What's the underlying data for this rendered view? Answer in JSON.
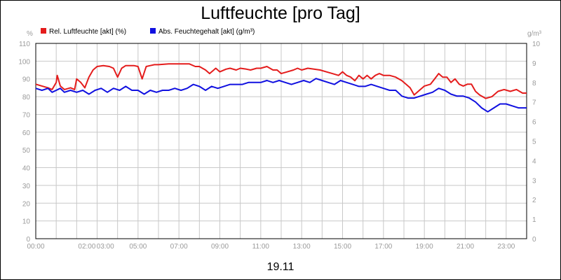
{
  "chart_data": {
    "type": "line",
    "title": "Luftfeuchte [pro Tag]",
    "xlabel": "19.11",
    "y_left_unit": "%",
    "y_right_unit": "g/m³",
    "xlim": [
      0,
      24
    ],
    "ylim_left": [
      0,
      110
    ],
    "ylim_right": [
      0,
      10
    ],
    "y_left_ticks": [
      0,
      10,
      20,
      30,
      40,
      50,
      60,
      70,
      80,
      90,
      100,
      110
    ],
    "y_right_ticks": [
      0,
      1,
      2,
      3,
      4,
      5,
      6,
      7,
      8,
      9,
      10
    ],
    "x_tick_labels": [
      {
        "x": 0,
        "label": "00:00"
      },
      {
        "x": 2.5,
        "label": "02:00"
      },
      {
        "x": 3.4,
        "label": "03:00"
      },
      {
        "x": 5,
        "label": "05:00"
      },
      {
        "x": 7,
        "label": "07:00"
      },
      {
        "x": 9,
        "label": "09:00"
      },
      {
        "x": 11,
        "label": "11:00"
      },
      {
        "x": 13,
        "label": "13:00"
      },
      {
        "x": 15,
        "label": "15:00"
      },
      {
        "x": 17,
        "label": "17:00"
      },
      {
        "x": 19,
        "label": "19:00"
      },
      {
        "x": 21,
        "label": "21:00"
      },
      {
        "x": 23,
        "label": "23:00"
      }
    ],
    "grid": true,
    "legend_position": "top-left",
    "series": [
      {
        "name": "Rel. Luftfeuchte [akt] (%)",
        "axis": "left",
        "color": "#e41c1c",
        "x": [
          0,
          0.3,
          0.6,
          0.8,
          1.0,
          1.05,
          1.2,
          1.4,
          1.7,
          1.9,
          2.0,
          2.2,
          2.4,
          2.6,
          2.8,
          3.0,
          3.3,
          3.6,
          3.8,
          4.0,
          4.2,
          4.4,
          4.6,
          4.8,
          5.0,
          5.2,
          5.4,
          5.6,
          5.8,
          6.0,
          6.5,
          7.0,
          7.5,
          7.8,
          8.0,
          8.3,
          8.5,
          8.8,
          9.0,
          9.3,
          9.5,
          9.8,
          10.0,
          10.3,
          10.5,
          10.8,
          11.0,
          11.3,
          11.6,
          11.8,
          12.0,
          12.3,
          12.6,
          12.8,
          13.0,
          13.3,
          13.6,
          13.9,
          14.2,
          14.5,
          14.8,
          15.0,
          15.2,
          15.4,
          15.6,
          15.8,
          16.0,
          16.2,
          16.4,
          16.6,
          16.8,
          17.0,
          17.3,
          17.6,
          17.9,
          18.1,
          18.3,
          18.5,
          18.7,
          19.0,
          19.3,
          19.5,
          19.7,
          19.8,
          19.9,
          20.1,
          20.3,
          20.5,
          20.7,
          20.9,
          21.1,
          21.3,
          21.5,
          21.7,
          22.0,
          22.3,
          22.6,
          22.9,
          23.2,
          23.5,
          23.8,
          24.0
        ],
        "y": [
          87,
          86,
          85,
          84,
          88,
          92,
          86,
          84,
          85,
          84,
          90,
          88,
          85,
          91,
          95,
          97,
          97.5,
          97,
          96,
          91,
          96,
          97.5,
          97.5,
          97.5,
          97,
          90,
          97,
          97.5,
          98,
          98,
          98.5,
          98.5,
          98.5,
          97,
          97,
          95,
          93,
          96,
          94,
          95.5,
          96,
          95,
          96,
          95.5,
          95,
          96,
          96,
          97,
          95,
          95,
          93,
          94,
          95,
          96,
          95,
          96,
          95.5,
          95,
          94,
          93,
          92,
          94,
          92,
          91,
          89,
          92,
          90,
          92,
          90,
          92,
          93,
          92,
          92,
          91,
          89,
          87,
          85,
          81,
          83,
          86,
          87,
          90,
          93,
          92,
          91,
          91,
          88,
          90,
          87,
          86,
          87,
          87,
          83,
          81,
          79,
          80,
          83,
          84,
          83,
          84,
          82,
          82
        ]
      },
      {
        "name": "Abs. Feuchtegehalt [akt] (g/m³)",
        "axis": "right",
        "color": "#1010e0",
        "x": [
          0,
          0.3,
          0.6,
          0.8,
          1.0,
          1.2,
          1.4,
          1.7,
          2.0,
          2.3,
          2.6,
          2.9,
          3.2,
          3.5,
          3.8,
          4.1,
          4.4,
          4.7,
          5.0,
          5.3,
          5.6,
          5.9,
          6.2,
          6.5,
          6.8,
          7.1,
          7.4,
          7.7,
          8.0,
          8.3,
          8.6,
          8.9,
          9.2,
          9.5,
          9.8,
          10.1,
          10.4,
          10.7,
          11.0,
          11.3,
          11.6,
          11.9,
          12.2,
          12.5,
          12.8,
          13.1,
          13.4,
          13.7,
          14.0,
          14.3,
          14.6,
          14.9,
          15.2,
          15.5,
          15.8,
          16.1,
          16.4,
          16.7,
          17.0,
          17.3,
          17.6,
          17.9,
          18.2,
          18.5,
          18.8,
          19.1,
          19.4,
          19.7,
          20.0,
          20.3,
          20.6,
          20.9,
          21.2,
          21.5,
          21.8,
          22.1,
          22.4,
          22.7,
          23.0,
          23.3,
          23.6,
          24.0
        ],
        "y": [
          7.7,
          7.6,
          7.7,
          7.5,
          7.6,
          7.7,
          7.5,
          7.6,
          7.5,
          7.6,
          7.4,
          7.6,
          7.7,
          7.5,
          7.7,
          7.6,
          7.8,
          7.6,
          7.6,
          7.4,
          7.6,
          7.5,
          7.6,
          7.6,
          7.7,
          7.6,
          7.7,
          7.9,
          7.8,
          7.6,
          7.8,
          7.7,
          7.8,
          7.9,
          7.9,
          7.9,
          8.0,
          8.0,
          8.0,
          8.1,
          8.0,
          8.1,
          8.0,
          7.9,
          8.0,
          8.1,
          8.0,
          8.2,
          8.1,
          8.0,
          7.9,
          8.1,
          8.0,
          7.9,
          7.8,
          7.8,
          7.9,
          7.8,
          7.7,
          7.6,
          7.6,
          7.3,
          7.2,
          7.2,
          7.3,
          7.4,
          7.5,
          7.7,
          7.6,
          7.4,
          7.3,
          7.3,
          7.2,
          7.0,
          6.7,
          6.5,
          6.7,
          6.9,
          6.9,
          6.8,
          6.7,
          6.7
        ]
      }
    ]
  }
}
